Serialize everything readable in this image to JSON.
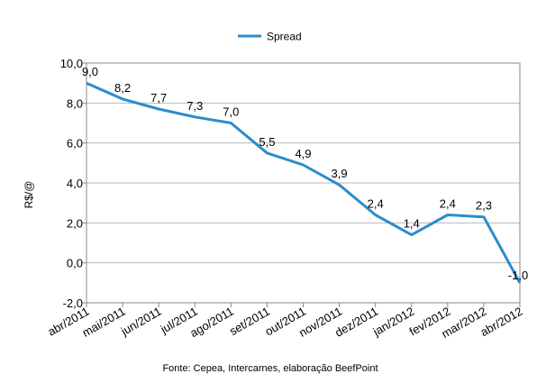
{
  "chart_data": {
    "type": "line",
    "categories": [
      "abr/2011",
      "mai/2011",
      "jun/2011",
      "jul/2011",
      "ago/2011",
      "set/2011",
      "out/2011",
      "nov/2011",
      "dez/2011",
      "jan/2012",
      "fev/2012",
      "mar/2012",
      "abr/2012"
    ],
    "series": [
      {
        "name": "Spread",
        "values": [
          9.0,
          8.2,
          7.7,
          7.3,
          7.0,
          5.5,
          4.9,
          3.9,
          2.4,
          1.4,
          2.4,
          2.3,
          -1.0
        ],
        "labels": [
          "9,0",
          "8,2",
          "7,7",
          "7,3",
          "7,0",
          "5,5",
          "4,9",
          "3,9",
          "2,4",
          "1,4",
          "2,4",
          "2,3",
          "-1,0"
        ]
      }
    ],
    "ylabel": "R$/@",
    "ylim": [
      -2,
      10
    ],
    "yticks": [
      -2,
      0,
      2,
      4,
      6,
      8,
      10
    ],
    "ytick_labels": [
      "-2,0",
      "0,0",
      "2,0",
      "4,0",
      "6,0",
      "8,0",
      "10,0"
    ],
    "grid": true,
    "legend": "top-center",
    "line_color": "#2b8ccc",
    "source": "Fonte: Cepea, Intercarnes, elaboração BeefPoint"
  }
}
